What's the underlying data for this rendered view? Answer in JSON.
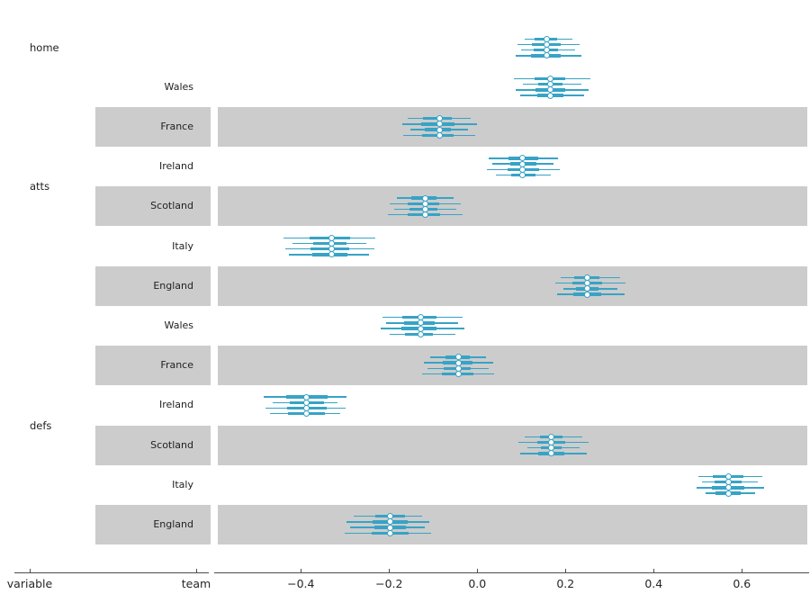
{
  "figure": {
    "colors": {
      "interval": "#37a3c6",
      "marker_fill": "#ffffff",
      "shading_band": "#cccccc",
      "axis": "#4d4d4d",
      "text": "#1f1f1f"
    }
  },
  "axes": {
    "label_axis": {
      "labels": [
        "variable",
        "team"
      ]
    },
    "value_axis": {
      "ticks": [
        -0.4,
        -0.2,
        0.0,
        0.2,
        0.4,
        0.6
      ],
      "tick_labels": [
        "−0.4",
        "−0.2",
        "0.0",
        "0.2",
        "0.4",
        "0.6"
      ]
    }
  },
  "chart_data": {
    "type": "forest",
    "title": "",
    "xlabel": "",
    "ylabel": "",
    "xlim": [
      -0.59,
      0.75
    ],
    "legend": "none",
    "grid": false,
    "chains_per_row": 4,
    "marker": "open-circle",
    "interval_style": "thin line = outer interval, thick line = quartile interval",
    "groups": [
      "home",
      "atts",
      "defs"
    ],
    "rows": [
      {
        "group": "home",
        "team": "",
        "mean": 0.157,
        "hdi": [
          0.098,
          0.225
        ],
        "quartile": [
          0.127,
          0.185
        ],
        "shaded": false
      },
      {
        "group": "atts",
        "team": "Wales",
        "mean": 0.165,
        "hdi": [
          0.095,
          0.245
        ],
        "quartile": [
          0.135,
          0.196
        ],
        "shaded": false
      },
      {
        "group": "atts",
        "team": "France",
        "mean": -0.086,
        "hdi": [
          -0.16,
          -0.012
        ],
        "quartile": [
          -0.123,
          -0.056
        ],
        "shaded": true
      },
      {
        "group": "atts",
        "team": "Ireland",
        "mean": 0.103,
        "hdi": [
          0.033,
          0.176
        ],
        "quartile": [
          0.074,
          0.135
        ],
        "shaded": false
      },
      {
        "group": "atts",
        "team": "Scotland",
        "mean": -0.118,
        "hdi": [
          -0.191,
          -0.045
        ],
        "quartile": [
          -0.154,
          -0.089
        ],
        "shaded": true
      },
      {
        "group": "atts",
        "team": "Italy",
        "mean": -0.331,
        "hdi": [
          -0.429,
          -0.242
        ],
        "quartile": [
          -0.375,
          -0.293
        ],
        "shaded": false
      },
      {
        "group": "atts",
        "team": "England",
        "mean": 0.249,
        "hdi": [
          0.187,
          0.326
        ],
        "quartile": [
          0.22,
          0.278
        ],
        "shaded": true
      },
      {
        "group": "defs",
        "team": "Wales",
        "mean": -0.129,
        "hdi": [
          -0.208,
          -0.041
        ],
        "quartile": [
          -0.167,
          -0.096
        ],
        "shaded": false
      },
      {
        "group": "defs",
        "team": "France",
        "mean": -0.043,
        "hdi": [
          -0.115,
          0.028
        ],
        "quartile": [
          -0.076,
          -0.014
        ],
        "shaded": true
      },
      {
        "group": "defs",
        "team": "Ireland",
        "mean": -0.388,
        "hdi": [
          -0.473,
          -0.307
        ],
        "quartile": [
          -0.429,
          -0.344
        ],
        "shaded": false
      },
      {
        "group": "defs",
        "team": "Scotland",
        "mean": 0.167,
        "hdi": [
          0.105,
          0.241
        ],
        "quartile": [
          0.141,
          0.195
        ],
        "shaded": true
      },
      {
        "group": "defs",
        "team": "Italy",
        "mean": 0.569,
        "hdi": [
          0.508,
          0.639
        ],
        "quartile": [
          0.537,
          0.601
        ],
        "shaded": false
      },
      {
        "group": "defs",
        "team": "England",
        "mean": -0.198,
        "hdi": [
          -0.29,
          -0.116
        ],
        "quartile": [
          -0.235,
          -0.16
        ],
        "shaded": true
      }
    ]
  }
}
